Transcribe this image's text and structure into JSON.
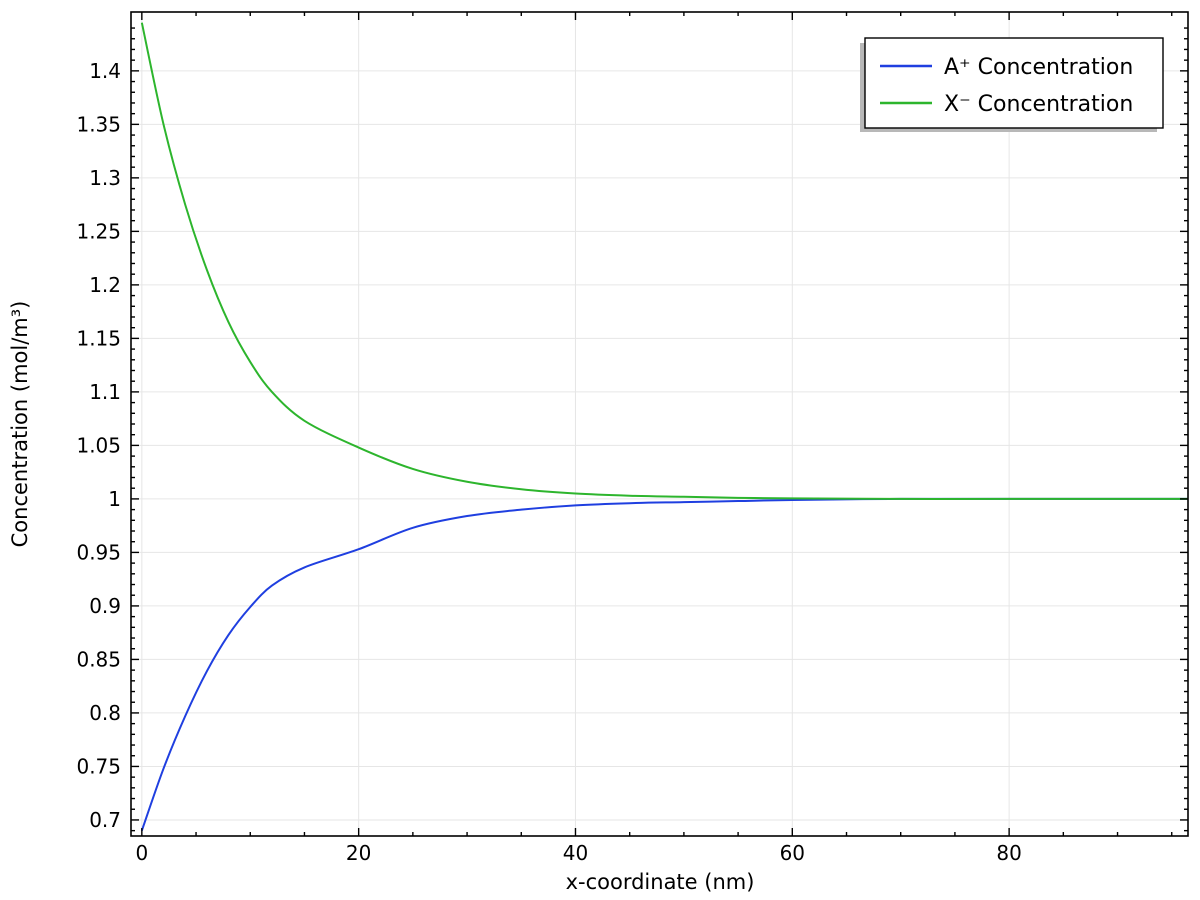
{
  "chart_data": {
    "type": "line",
    "xlabel": "x-coordinate (nm)",
    "ylabel": "Concentration (mol/m³)",
    "xlim": [
      -1,
      96.5
    ],
    "ylim": [
      0.685,
      1.455
    ],
    "x_ticks": [
      0,
      20,
      40,
      60,
      80
    ],
    "y_ticks": [
      0.7,
      0.75,
      0.8,
      0.85,
      0.9,
      0.95,
      1,
      1.05,
      1.1,
      1.15,
      1.2,
      1.25,
      1.3,
      1.35,
      1.4
    ],
    "y_tick_labels": [
      "0.7",
      "0.75",
      "0.8",
      "0.85",
      "0.9",
      "0.95",
      "1",
      "1.05",
      "1.1",
      "1.15",
      "1.2",
      "1.25",
      "1.3",
      "1.35",
      "1.4"
    ],
    "x_tick_labels": [
      "0",
      "20",
      "40",
      "60",
      "80"
    ],
    "grid": true,
    "legend_position": "top-right",
    "series": [
      {
        "name": "A⁺ Concentration",
        "color": "#1f3fe0",
        "x": [
          0,
          2,
          4,
          6,
          8,
          10,
          12,
          15,
          20,
          25,
          30,
          35,
          40,
          45,
          50,
          55,
          60,
          70,
          80,
          96.5
        ],
        "y": [
          0.69,
          0.748,
          0.797,
          0.839,
          0.873,
          0.899,
          0.919,
          0.936,
          0.953,
          0.973,
          0.984,
          0.99,
          0.994,
          0.996,
          0.997,
          0.998,
          0.999,
          1,
          1,
          1
        ]
      },
      {
        "name": "X⁻ Concentration",
        "color": "#2db52d",
        "x": [
          0,
          2,
          4,
          6,
          8,
          10,
          12,
          15,
          20,
          25,
          30,
          35,
          40,
          45,
          50,
          55,
          60,
          70,
          80,
          96.5
        ],
        "y": [
          1.445,
          1.35,
          1.275,
          1.214,
          1.165,
          1.128,
          1.1,
          1.073,
          1.048,
          1.028,
          1.016,
          1.009,
          1.005,
          1.003,
          1.002,
          1.001,
          1.0005,
          1,
          1,
          1
        ]
      }
    ]
  }
}
